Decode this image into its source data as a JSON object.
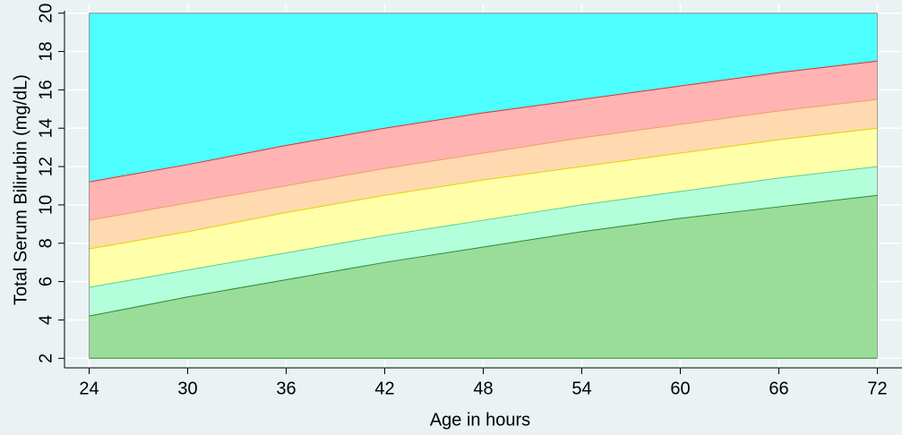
{
  "chart_data": {
    "type": "band-area",
    "x_label": "Age in hours",
    "y_label": "Total Serum Bilirubin (mg/dL)",
    "x": [
      24,
      30,
      36,
      42,
      48,
      54,
      60,
      66,
      72
    ],
    "series": [
      {
        "color": "#99dd99",
        "line_color": "#2e8b2e",
        "values": [
          2,
          2,
          2,
          2,
          2,
          2,
          2,
          2,
          2
        ]
      },
      {
        "color": "#99dd99",
        "line_color": "#2e8b2e",
        "values": [
          4.2,
          5.2,
          6.1,
          7.0,
          7.8,
          8.6,
          9.3,
          9.9,
          10.5
        ]
      },
      {
        "color": "#b3ffdc",
        "line_color": "#5fcf8f",
        "values": [
          5.7,
          6.6,
          7.5,
          8.4,
          9.2,
          10.0,
          10.7,
          11.4,
          12.0
        ]
      },
      {
        "color": "#ffffaa",
        "line_color": "#e6d200",
        "values": [
          7.7,
          8.6,
          9.6,
          10.5,
          11.3,
          12.0,
          12.7,
          13.4,
          14.0
        ]
      },
      {
        "color": "#ffd9b0",
        "line_color": "#f0a060",
        "values": [
          9.2,
          10.1,
          11.0,
          11.9,
          12.7,
          13.5,
          14.2,
          14.9,
          15.5
        ]
      },
      {
        "color": "#ffb3b3",
        "line_color": "#e03030",
        "values": [
          11.2,
          12.1,
          13.1,
          14.0,
          14.8,
          15.5,
          16.2,
          16.9,
          17.5
        ]
      },
      {
        "color": "#4dffff",
        "line_color": "#888888",
        "values": [
          20,
          20,
          20,
          20,
          20,
          20,
          20,
          20,
          20
        ]
      }
    ],
    "xlim": [
      22.5,
      73.5
    ],
    "ylim": [
      1.5,
      20.5
    ],
    "xticks": [
      24,
      30,
      36,
      42,
      48,
      54,
      60,
      66,
      72
    ],
    "yticks": [
      2,
      4,
      6,
      8,
      10,
      12,
      14,
      16,
      18,
      20
    ],
    "grid": true
  }
}
